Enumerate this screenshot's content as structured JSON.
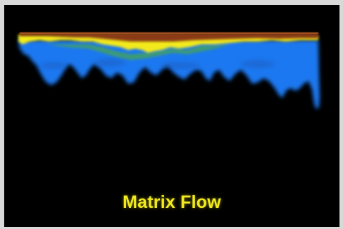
{
  "caption": "Matrix Flow",
  "colors": {
    "background": "#000000",
    "frame": "#d9d9d9",
    "top_layer": "#8a3a12",
    "yellow_front": "#f2ea1c",
    "green_band": "#3f9e6a",
    "blue_flow": "#1e78f0",
    "caption": "#f2ea1c"
  }
}
